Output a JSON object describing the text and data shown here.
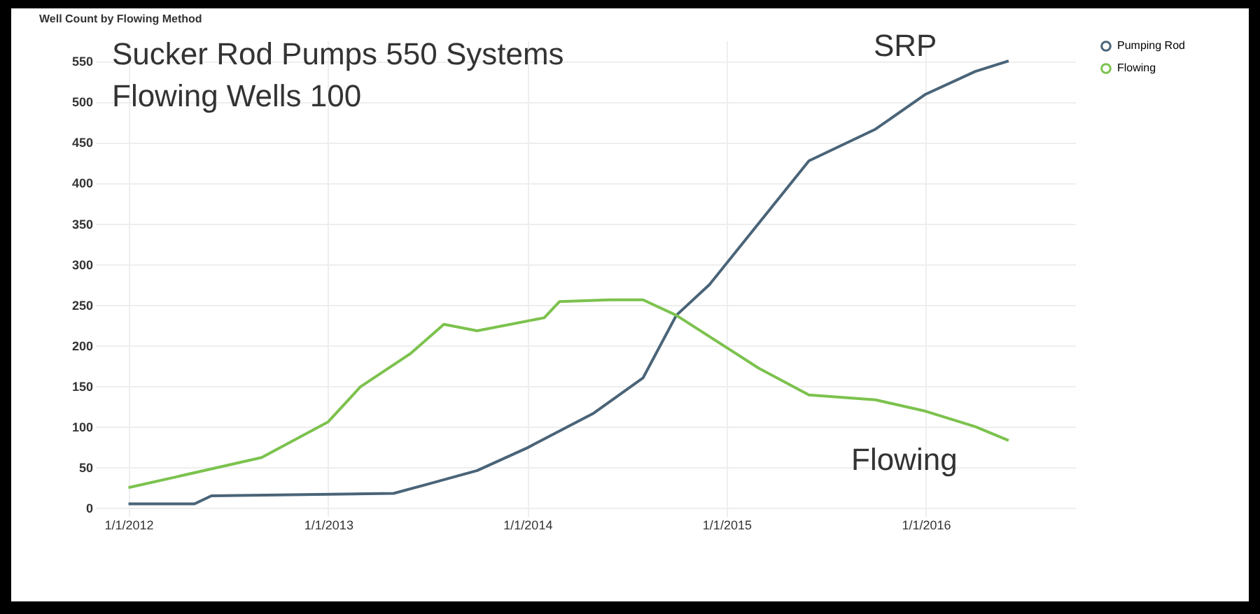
{
  "chart_data": {
    "type": "line",
    "title": "Well Count by Flowing Method",
    "annotations": [
      "Sucker Rod Pumps 550 Systems",
      "Flowing Wells 100",
      "SRP",
      "Flowing"
    ],
    "series": [
      {
        "name": "Pumping Rod",
        "color": "#4a6478",
        "x": [
          "2012-01",
          "2012-05",
          "2012-06",
          "2013-05",
          "2013-07",
          "2013-10",
          "2014-01",
          "2014-05",
          "2014-08",
          "2014-10",
          "2014-12",
          "2015-06",
          "2015-10",
          "2016-01",
          "2016-04",
          "2016-06"
        ],
        "values": [
          5,
          5,
          15,
          18,
          29,
          46,
          74,
          116,
          160,
          237,
          275,
          427,
          466,
          509,
          537,
          550
        ]
      },
      {
        "name": "Flowing",
        "color": "#7cc24e",
        "x": [
          "2012-01",
          "2012-09",
          "2013-01",
          "2013-03",
          "2013-06",
          "2013-08",
          "2013-10",
          "2014-02",
          "2014-03",
          "2014-06",
          "2014-08",
          "2014-10",
          "2015-03",
          "2015-06",
          "2015-10",
          "2016-01",
          "2016-04",
          "2016-06"
        ],
        "values": [
          25,
          62,
          106,
          149,
          190,
          226,
          218,
          234,
          254,
          256,
          256,
          237,
          172,
          139,
          133,
          119,
          100,
          83
        ]
      }
    ],
    "xlim": [
      "2011-11",
      "2016-10"
    ],
    "xticks": [
      {
        "value": "2012-01-01",
        "label": "1/1/2012"
      },
      {
        "value": "2013-01-01",
        "label": "1/1/2013"
      },
      {
        "value": "2014-01-01",
        "label": "1/1/2014"
      },
      {
        "value": "2015-01-01",
        "label": "1/1/2015"
      },
      {
        "value": "2016-01-01",
        "label": "1/1/2016"
      }
    ],
    "ylim": [
      -10,
      575
    ],
    "yticks": [
      0,
      50,
      100,
      150,
      200,
      250,
      300,
      350,
      400,
      450,
      500,
      550
    ],
    "grid": true,
    "legend": "top right",
    "marker": "none",
    "line_style": "solid"
  }
}
